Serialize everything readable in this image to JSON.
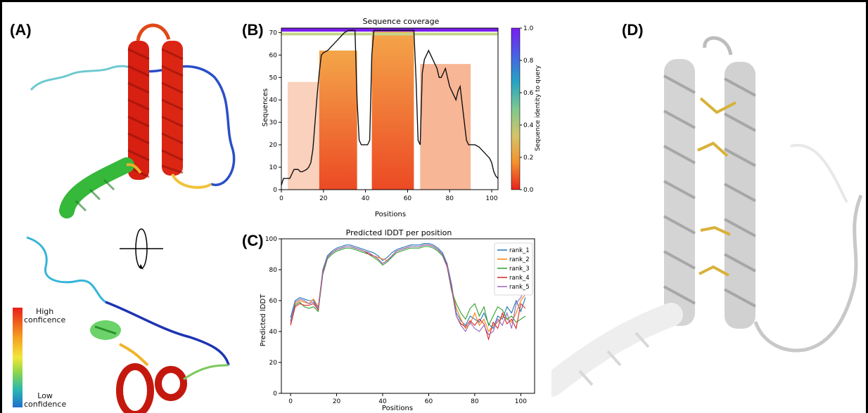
{
  "figure": {
    "panel_labels": {
      "a": "(A)",
      "b": "(B)",
      "c": "(C)",
      "d": "(D)"
    },
    "legend_a": {
      "high_lines": [
        "High",
        "conficence"
      ],
      "low_lines": [
        "Low",
        "confidence"
      ],
      "gradient_colors": [
        "#e8201a",
        "#f5a020",
        "#f3e63b",
        "#8cd64a",
        "#2ab8b0",
        "#1f6fd0"
      ]
    },
    "structure_colors": {
      "helix_high": "#dd1f12",
      "loop_low": "#1a3fb0",
      "helix_mid": "#39c23a",
      "panel_d_grey": "#cfcfcf",
      "disulfide": "#d8b13a"
    }
  },
  "chart_data": [
    {
      "id": "coverage",
      "type": "heatmap",
      "title": "Sequence coverage",
      "xlabel": "Positions",
      "ylabel": "Sequences",
      "xlim": [
        0,
        103
      ],
      "ylim": [
        0,
        72
      ],
      "xticks": [
        0,
        20,
        40,
        60,
        80,
        100
      ],
      "yticks": [
        0,
        10,
        20,
        30,
        40,
        50,
        60,
        70
      ],
      "colorbar": {
        "label": "Sequence identity to query",
        "ticks": [
          "0.0",
          "0.2",
          "0.4",
          "0.6",
          "0.8",
          "1.0"
        ],
        "colors": [
          "#e9221d",
          "#f4902e",
          "#d4c468",
          "#7ec88f",
          "#25a4c4",
          "#4961e6",
          "#7a1cf0"
        ]
      },
      "coverage_line": {
        "x": [
          0,
          1,
          2,
          4,
          5,
          6,
          8,
          9,
          10,
          12,
          13,
          14,
          15,
          16,
          17,
          18,
          19,
          20,
          22,
          24,
          26,
          28,
          30,
          32,
          33,
          34,
          35,
          36,
          37,
          38,
          39,
          40,
          41,
          42,
          43,
          44,
          46,
          48,
          50,
          52,
          54,
          56,
          58,
          60,
          61,
          62,
          63,
          64,
          65,
          66,
          67,
          68,
          69,
          70,
          71,
          72,
          73,
          74,
          75,
          76,
          77,
          78,
          79,
          80,
          81,
          82,
          83,
          84,
          85,
          86,
          87,
          88,
          89,
          90,
          92,
          94,
          96,
          98,
          99,
          100,
          101,
          102,
          103
        ],
        "y": [
          2,
          5,
          5,
          5,
          7,
          9,
          9,
          8,
          8,
          9,
          10,
          12,
          18,
          30,
          42,
          52,
          60,
          61,
          62,
          64,
          66,
          68,
          70,
          71,
          71,
          71,
          71,
          40,
          22,
          20,
          20,
          20,
          20,
          22,
          60,
          71,
          71,
          71,
          71,
          71,
          71,
          71,
          71,
          71,
          71,
          71,
          71,
          50,
          22,
          20,
          52,
          58,
          60,
          62,
          60,
          58,
          56,
          54,
          50,
          50,
          52,
          54,
          50,
          46,
          44,
          42,
          40,
          44,
          46,
          38,
          30,
          22,
          20,
          20,
          20,
          19,
          17,
          15,
          14,
          12,
          8,
          6,
          5
        ]
      },
      "identity_bands": [
        {
          "label": "top",
          "identity": 1.0
        }
      ]
    },
    {
      "id": "plddt",
      "type": "line",
      "title": "Predicted lDDT per position",
      "xlabel": "Positions",
      "ylabel": "Predicted lDDT",
      "xlim": [
        -4,
        106
      ],
      "ylim": [
        0,
        100
      ],
      "xticks": [
        0,
        20,
        40,
        60,
        80,
        100
      ],
      "yticks": [
        0,
        20,
        40,
        60,
        80,
        100
      ],
      "legend_position": "top-right",
      "series": [
        {
          "name": "rank_1",
          "color": "#1f77b4",
          "x": [
            0,
            2,
            4,
            6,
            8,
            10,
            12,
            14,
            16,
            18,
            20,
            22,
            24,
            26,
            28,
            30,
            32,
            34,
            36,
            38,
            40,
            42,
            44,
            46,
            48,
            50,
            52,
            54,
            56,
            58,
            60,
            62,
            64,
            66,
            68,
            70,
            72,
            74,
            76,
            78,
            80,
            82,
            84,
            86,
            88,
            90,
            92,
            94,
            96,
            98,
            100,
            102
          ],
          "values": [
            49,
            60,
            62,
            61,
            60,
            60,
            55,
            80,
            89,
            92,
            94,
            95,
            96,
            96,
            95,
            94,
            93,
            92,
            91,
            89,
            86,
            88,
            91,
            93,
            94,
            95,
            96,
            96,
            96,
            97,
            97,
            96,
            94,
            91,
            84,
            70,
            52,
            47,
            44,
            50,
            48,
            46,
            52,
            45,
            42,
            50,
            48,
            56,
            52,
            60,
            53,
            62
          ]
        },
        {
          "name": "rank_2",
          "color": "#ff7f0e",
          "x": [
            0,
            2,
            4,
            6,
            8,
            10,
            12,
            14,
            16,
            18,
            20,
            22,
            24,
            26,
            28,
            30,
            32,
            34,
            36,
            38,
            40,
            42,
            44,
            46,
            48,
            50,
            52,
            54,
            56,
            58,
            60,
            62,
            64,
            66,
            68,
            70,
            72,
            74,
            76,
            78,
            80,
            82,
            84,
            86,
            88,
            90,
            92,
            94,
            96,
            98,
            100,
            102
          ],
          "values": [
            45,
            58,
            60,
            59,
            58,
            61,
            56,
            79,
            88,
            91,
            93,
            94,
            95,
            95,
            94,
            93,
            92,
            91,
            89,
            88,
            87,
            86,
            89,
            92,
            93,
            94,
            95,
            95,
            95,
            96,
            96,
            95,
            93,
            90,
            83,
            68,
            55,
            48,
            42,
            45,
            52,
            44,
            48,
            40,
            44,
            46,
            50,
            48,
            46,
            52,
            60,
            64
          ]
        },
        {
          "name": "rank_3",
          "color": "#2ca02c",
          "x": [
            0,
            2,
            4,
            6,
            8,
            10,
            12,
            14,
            16,
            18,
            20,
            22,
            24,
            26,
            28,
            30,
            32,
            34,
            36,
            38,
            40,
            42,
            44,
            46,
            48,
            50,
            52,
            54,
            56,
            58,
            60,
            62,
            64,
            66,
            68,
            70,
            72,
            74,
            76,
            78,
            80,
            82,
            84,
            86,
            88,
            90,
            92,
            94,
            96,
            98,
            100,
            102
          ],
          "values": [
            47,
            57,
            59,
            56,
            55,
            56,
            53,
            77,
            87,
            90,
            92,
            93,
            94,
            94,
            93,
            92,
            91,
            90,
            88,
            86,
            83,
            85,
            88,
            91,
            92,
            93,
            94,
            94,
            94,
            95,
            95,
            94,
            92,
            89,
            82,
            66,
            58,
            52,
            48,
            55,
            58,
            50,
            56,
            44,
            50,
            56,
            54,
            48,
            50,
            46,
            48,
            50
          ]
        },
        {
          "name": "rank_4",
          "color": "#d62728",
          "x": [
            0,
            2,
            4,
            6,
            8,
            10,
            12,
            14,
            16,
            18,
            20,
            22,
            24,
            26,
            28,
            30,
            32,
            34,
            36,
            38,
            40,
            42,
            44,
            46,
            48,
            50,
            52,
            54,
            56,
            58,
            60,
            62,
            64,
            66,
            68,
            70,
            72,
            74,
            76,
            78,
            80,
            82,
            84,
            86,
            88,
            90,
            92,
            94,
            96,
            98,
            100,
            102
          ],
          "values": [
            44,
            56,
            58,
            57,
            57,
            58,
            54,
            78,
            88,
            91,
            93,
            94,
            95,
            95,
            94,
            93,
            92,
            90,
            89,
            87,
            84,
            86,
            89,
            92,
            93,
            94,
            95,
            95,
            95,
            96,
            96,
            95,
            93,
            90,
            82,
            67,
            50,
            45,
            43,
            47,
            44,
            48,
            45,
            35,
            46,
            42,
            52,
            45,
            48,
            42,
            58,
            55
          ]
        },
        {
          "name": "rank_5",
          "color": "#9467bd",
          "x": [
            0,
            2,
            4,
            6,
            8,
            10,
            12,
            14,
            16,
            18,
            20,
            22,
            24,
            26,
            28,
            30,
            32,
            34,
            36,
            38,
            40,
            42,
            44,
            46,
            48,
            50,
            52,
            54,
            56,
            58,
            60,
            62,
            64,
            66,
            68,
            70,
            72,
            74,
            76,
            78,
            80,
            82,
            84,
            86,
            88,
            90,
            92,
            94,
            96,
            98,
            100,
            102
          ],
          "values": [
            46,
            59,
            61,
            60,
            58,
            59,
            55,
            79,
            88,
            91,
            93,
            94,
            95,
            95,
            94,
            93,
            92,
            91,
            89,
            87,
            84,
            86,
            89,
            92,
            93,
            94,
            95,
            95,
            95,
            96,
            96,
            95,
            93,
            90,
            83,
            68,
            50,
            44,
            40,
            46,
            42,
            40,
            44,
            38,
            40,
            48,
            44,
            52,
            42,
            58,
            62,
            68
          ]
        }
      ]
    }
  ]
}
